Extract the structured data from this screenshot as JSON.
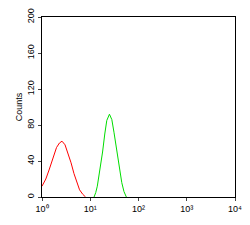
{
  "chart_data": {
    "type": "line",
    "y_label": "Counts",
    "log": "x",
    "grid": false,
    "xlim": [
      1,
      10000
    ],
    "xticks": [
      {
        "value": 1,
        "label": "10⁰"
      },
      {
        "value": 10,
        "label": "10¹"
      },
      {
        "value": 100,
        "label": "10²"
      },
      {
        "value": 1000,
        "label": "10³"
      },
      {
        "value": 10000,
        "label": "10⁴"
      }
    ],
    "ylim": [
      0,
      200
    ],
    "yticks": [
      0,
      40,
      80,
      120,
      160,
      200
    ],
    "series": [
      {
        "color": "#ff0000",
        "x": [
          1.0,
          1.2,
          1.4,
          1.6,
          1.8,
          2.0,
          2.3,
          2.6,
          3.0,
          3.5,
          4.0,
          4.6,
          5.3,
          6.0,
          7.0,
          8.0
        ],
        "values": [
          12,
          20,
          30,
          40,
          48,
          55,
          60,
          62,
          58,
          48,
          38,
          26,
          15,
          8,
          3,
          0
        ]
      },
      {
        "color": "#00dd00",
        "x": [
          12,
          13,
          14,
          16,
          18,
          20,
          22,
          25,
          28,
          31,
          35,
          40,
          45,
          50,
          56
        ],
        "values": [
          0,
          5,
          12,
          30,
          50,
          70,
          85,
          92,
          86,
          72,
          52,
          32,
          16,
          6,
          0
        ]
      }
    ]
  }
}
